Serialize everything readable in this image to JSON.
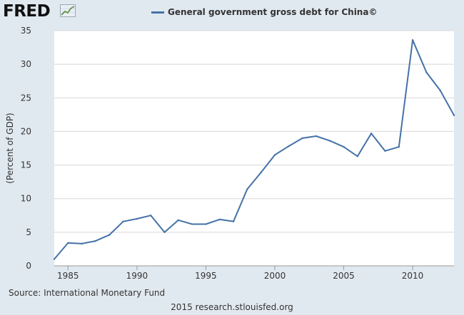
{
  "logo": {
    "text": "FRED",
    "icon": "chart-trend-icon"
  },
  "source": "Source: International Monetary Fund",
  "credit": "2015 research.stlouisfed.org",
  "colors": {
    "background": "#e1e9f0",
    "plot_background": "#ffffff",
    "line": "#4572a7",
    "grid": "#d8d8d8"
  },
  "chart_data": {
    "type": "line",
    "title": "",
    "xlabel": "",
    "ylabel": "(Percent of GDP)",
    "ylim": [
      0,
      35
    ],
    "xlim": [
      1984,
      2013
    ],
    "y_ticks": [
      0,
      5,
      10,
      15,
      20,
      25,
      30,
      35
    ],
    "x_ticks": [
      1985,
      1990,
      1995,
      2000,
      2005,
      2010
    ],
    "grid": "horizontal",
    "legend_position": "top-center",
    "series": [
      {
        "name": "General government gross debt for China©",
        "color": "#4572a7",
        "x": [
          1984,
          1985,
          1986,
          1987,
          1988,
          1989,
          1990,
          1991,
          1992,
          1993,
          1994,
          1995,
          1996,
          1997,
          1998,
          1999,
          2000,
          2001,
          2002,
          2003,
          2004,
          2005,
          2006,
          2007,
          2008,
          2009,
          2010,
          2011,
          2012,
          2013
        ],
        "values": [
          1.0,
          3.4,
          3.3,
          3.7,
          4.6,
          6.6,
          7.0,
          7.5,
          5.0,
          6.8,
          6.2,
          6.2,
          6.9,
          6.6,
          11.4,
          13.9,
          16.5,
          17.8,
          19.0,
          19.3,
          18.6,
          17.7,
          16.3,
          19.7,
          17.1,
          17.7,
          33.6,
          28.8,
          26.1,
          22.4
        ]
      }
    ]
  }
}
